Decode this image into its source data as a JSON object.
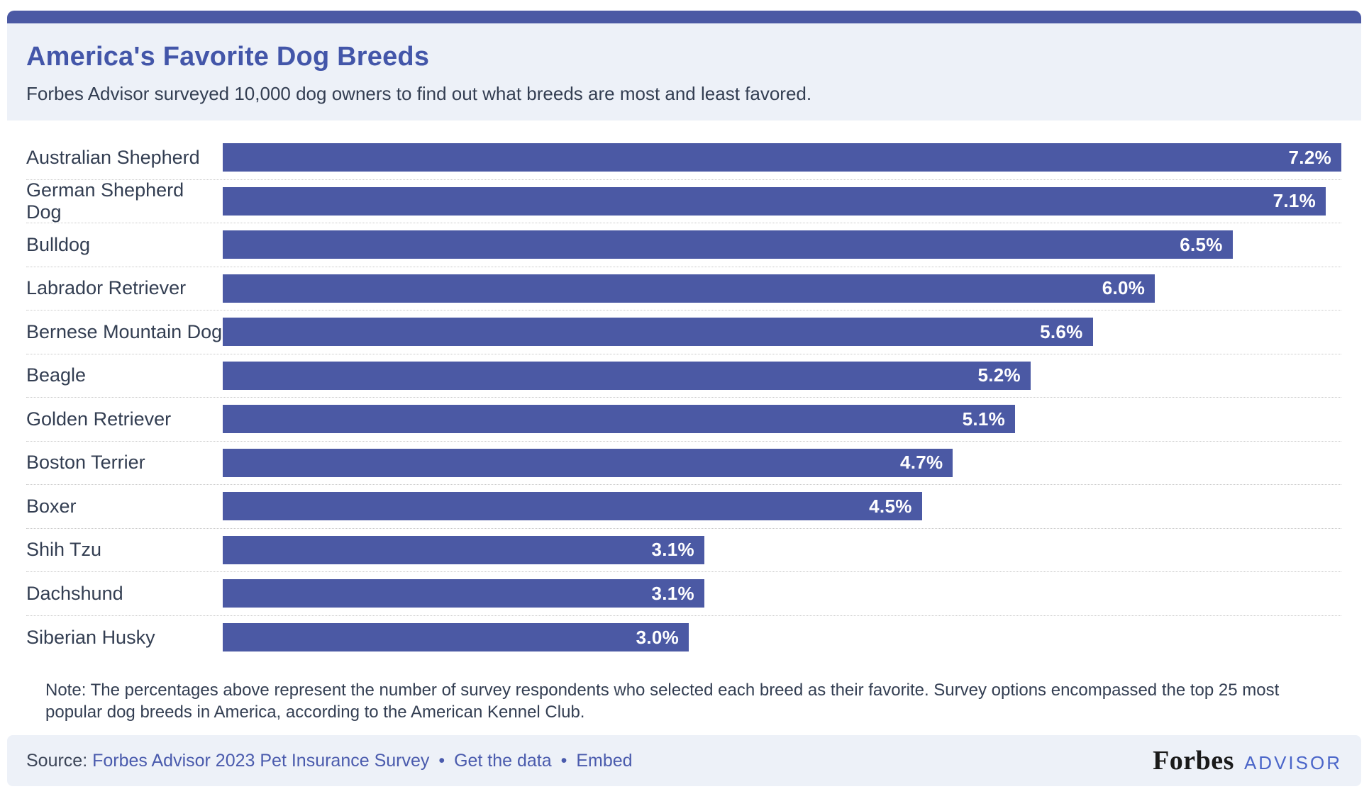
{
  "header": {
    "title": "America's Favorite Dog Breeds",
    "subtitle": "Forbes Advisor surveyed 10,000 dog owners to find out what breeds are most and least favored."
  },
  "chart_data": {
    "type": "bar",
    "orientation": "horizontal",
    "title": "America's Favorite Dog Breeds",
    "categories": [
      "Australian Shepherd",
      "German Shepherd Dog",
      "Bulldog",
      "Labrador Retriever",
      "Bernese Mountain Dog",
      "Beagle",
      "Golden Retriever",
      "Boston Terrier",
      "Boxer",
      "Shih Tzu",
      "Dachshund",
      "Siberian Husky"
    ],
    "values": [
      7.2,
      7.1,
      6.5,
      6.0,
      5.6,
      5.2,
      5.1,
      4.7,
      4.5,
      3.1,
      3.1,
      3.0
    ],
    "value_labels": [
      "7.2%",
      "7.1%",
      "6.5%",
      "6.0%",
      "5.6%",
      "5.2%",
      "5.1%",
      "4.7%",
      "4.5%",
      "3.1%",
      "3.1%",
      "3.0%"
    ],
    "xlabel": "",
    "ylabel": "",
    "xlim": [
      0,
      7.2
    ],
    "grid": "dotted-row-separators",
    "legend": "none",
    "bar_color": "#4b59a4",
    "value_label_color": "#ffffff",
    "value_label_position": "inside-end"
  },
  "note": "Note: The percentages above represent the number of survey respondents who selected each breed as their favorite. Survey options encompassed the top 25 most popular dog breeds in America, according to the American Kennel Club.",
  "footer": {
    "source_label": "Source:",
    "links": [
      {
        "label": "Forbes Advisor 2023 Pet Insurance Survey"
      },
      {
        "label": "Get the data"
      },
      {
        "label": "Embed"
      }
    ],
    "separator": "•",
    "logo": {
      "primary": "Forbes",
      "secondary": "ADVISOR"
    }
  },
  "colors": {
    "accent_bar": "#4b59a4",
    "title": "#4356a9",
    "header_background": "#edf1f8",
    "body_text": "#333e52",
    "row_separator": "#c9c9c9",
    "footer_background": "#edf1f8",
    "link": "#4a5bad",
    "logo_primary": "#1a1a1a",
    "logo_secondary": "#4b66c9"
  }
}
